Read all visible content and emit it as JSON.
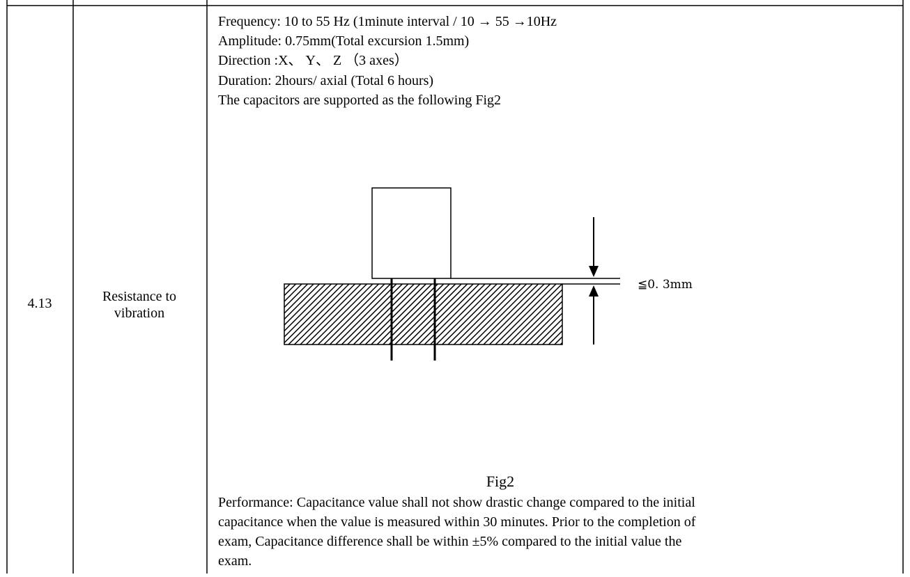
{
  "table": {
    "rows": [
      {
        "number": "4.13",
        "item": [
          "Resistance to",
          "vibration"
        ],
        "conditions": [
          "Frequency: 10 to 55 Hz (1minute interval / 10 → 55 →10Hz",
          "Amplitude: 0.75mm(Total excursion 1.5mm)",
          "Direction :X、 Y、 Z （3 axes）",
          "Duration: 2hours/ axial (Total 6 hours)",
          "The capacitors are supported as the following Fig2"
        ],
        "figure": {
          "dimension": "≦0. 3mm",
          "caption": "Fig2"
        },
        "performance": [
          "Performance: Capacitance value shall not show drastic change compared to the initial",
          "capacitance when the value is measured within 30 minutes. Prior to the completion of",
          "exam, Capacitance difference shall be within ±5% compared to the initial value the",
          "exam."
        ]
      }
    ]
  }
}
